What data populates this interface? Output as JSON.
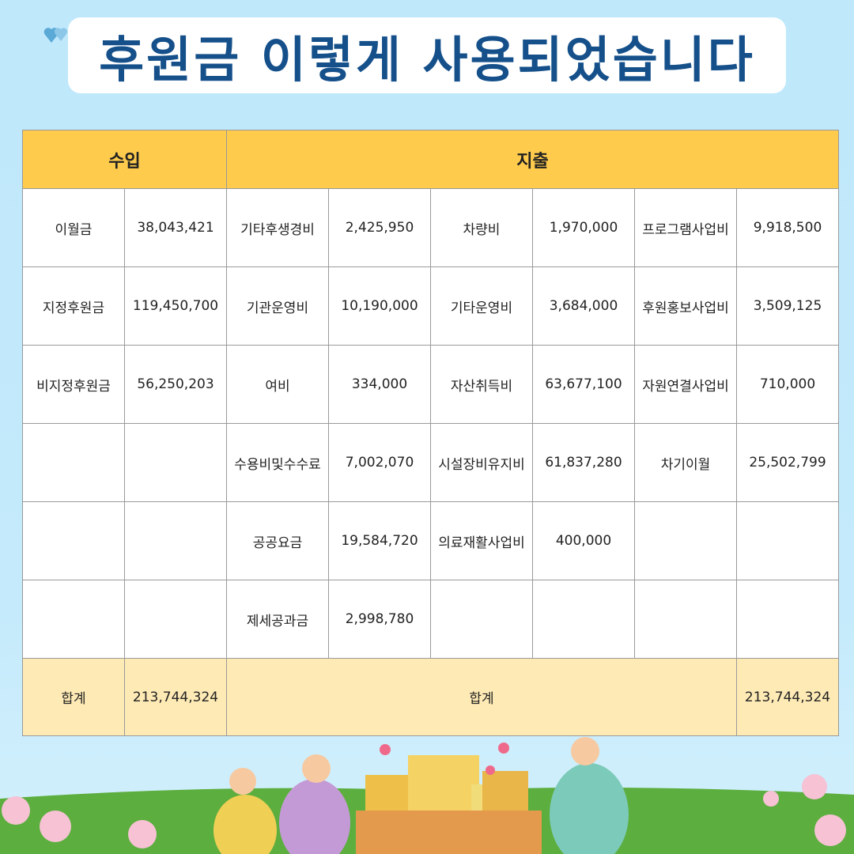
{
  "title": "후원금 이렇게 사용되었습니다",
  "table": {
    "headers": {
      "income": "수입",
      "expense": "지출"
    },
    "rows": [
      [
        "이월금",
        "38,043,421",
        "기타후생경비",
        "2,425,950",
        "차량비",
        "1,970,000",
        "프로그램사업비",
        "9,918,500"
      ],
      [
        "지정후원금",
        "119,450,700",
        "기관운영비",
        "10,190,000",
        "기타운영비",
        "3,684,000",
        "후원홍보사업비",
        "3,509,125"
      ],
      [
        "비지정후원금",
        "56,250,203",
        "여비",
        "334,000",
        "자산취득비",
        "63,677,100",
        "자원연결사업비",
        "710,000"
      ],
      [
        "",
        "",
        "수용비및수수료",
        "7,002,070",
        "시설장비유지비",
        "61,837,280",
        "차기이월",
        "25,502,799"
      ],
      [
        "",
        "",
        "공공요금",
        "19,584,720",
        "의료재활사업비",
        "400,000",
        "",
        ""
      ],
      [
        "",
        "",
        "제세공과금",
        "2,998,780",
        "",
        "",
        "",
        ""
      ]
    ],
    "total": {
      "income_label": "합계",
      "income_value": "213,744,324",
      "expense_label": "합계",
      "expense_value": "213,744,324"
    }
  },
  "colors": {
    "title": "#15508a",
    "header_bg": "#fecb4d",
    "total_bg": "#feeab5",
    "background": "#bfe8fb"
  }
}
